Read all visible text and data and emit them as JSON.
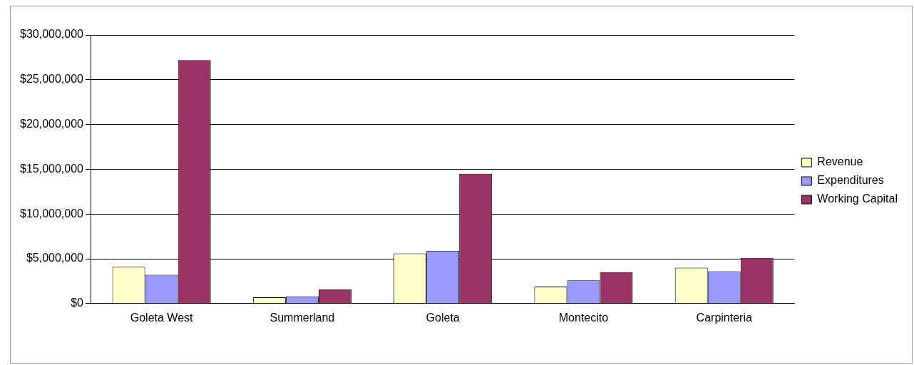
{
  "chart_data": {
    "type": "bar",
    "categories": [
      "Goleta West",
      "Summerland",
      "Goleta",
      "Montecito",
      "Carpinteria"
    ],
    "series": [
      {
        "name": "Revenue",
        "color": "#ffffcc",
        "values": [
          4100000,
          700000,
          5600000,
          1900000,
          4000000
        ]
      },
      {
        "name": "Expenditures",
        "color": "#9999ff",
        "values": [
          3200000,
          800000,
          5900000,
          2600000,
          3600000
        ]
      },
      {
        "name": "Working Capital",
        "color": "#993366",
        "values": [
          27200000,
          1600000,
          14500000,
          3500000,
          5100000
        ]
      }
    ],
    "ylim": [
      0,
      30000000
    ],
    "yticks": [
      {
        "value": 0,
        "label": "$0"
      },
      {
        "value": 5000000,
        "label": "$5,000,000"
      },
      {
        "value": 10000000,
        "label": "$10,000,000"
      },
      {
        "value": 15000000,
        "label": "$15,000,000"
      },
      {
        "value": 20000000,
        "label": "$20,000,000"
      },
      {
        "value": 25000000,
        "label": "$25,000,000"
      },
      {
        "value": 30000000,
        "label": "$30,000,000"
      }
    ],
    "grid": "y",
    "legend": "right"
  }
}
